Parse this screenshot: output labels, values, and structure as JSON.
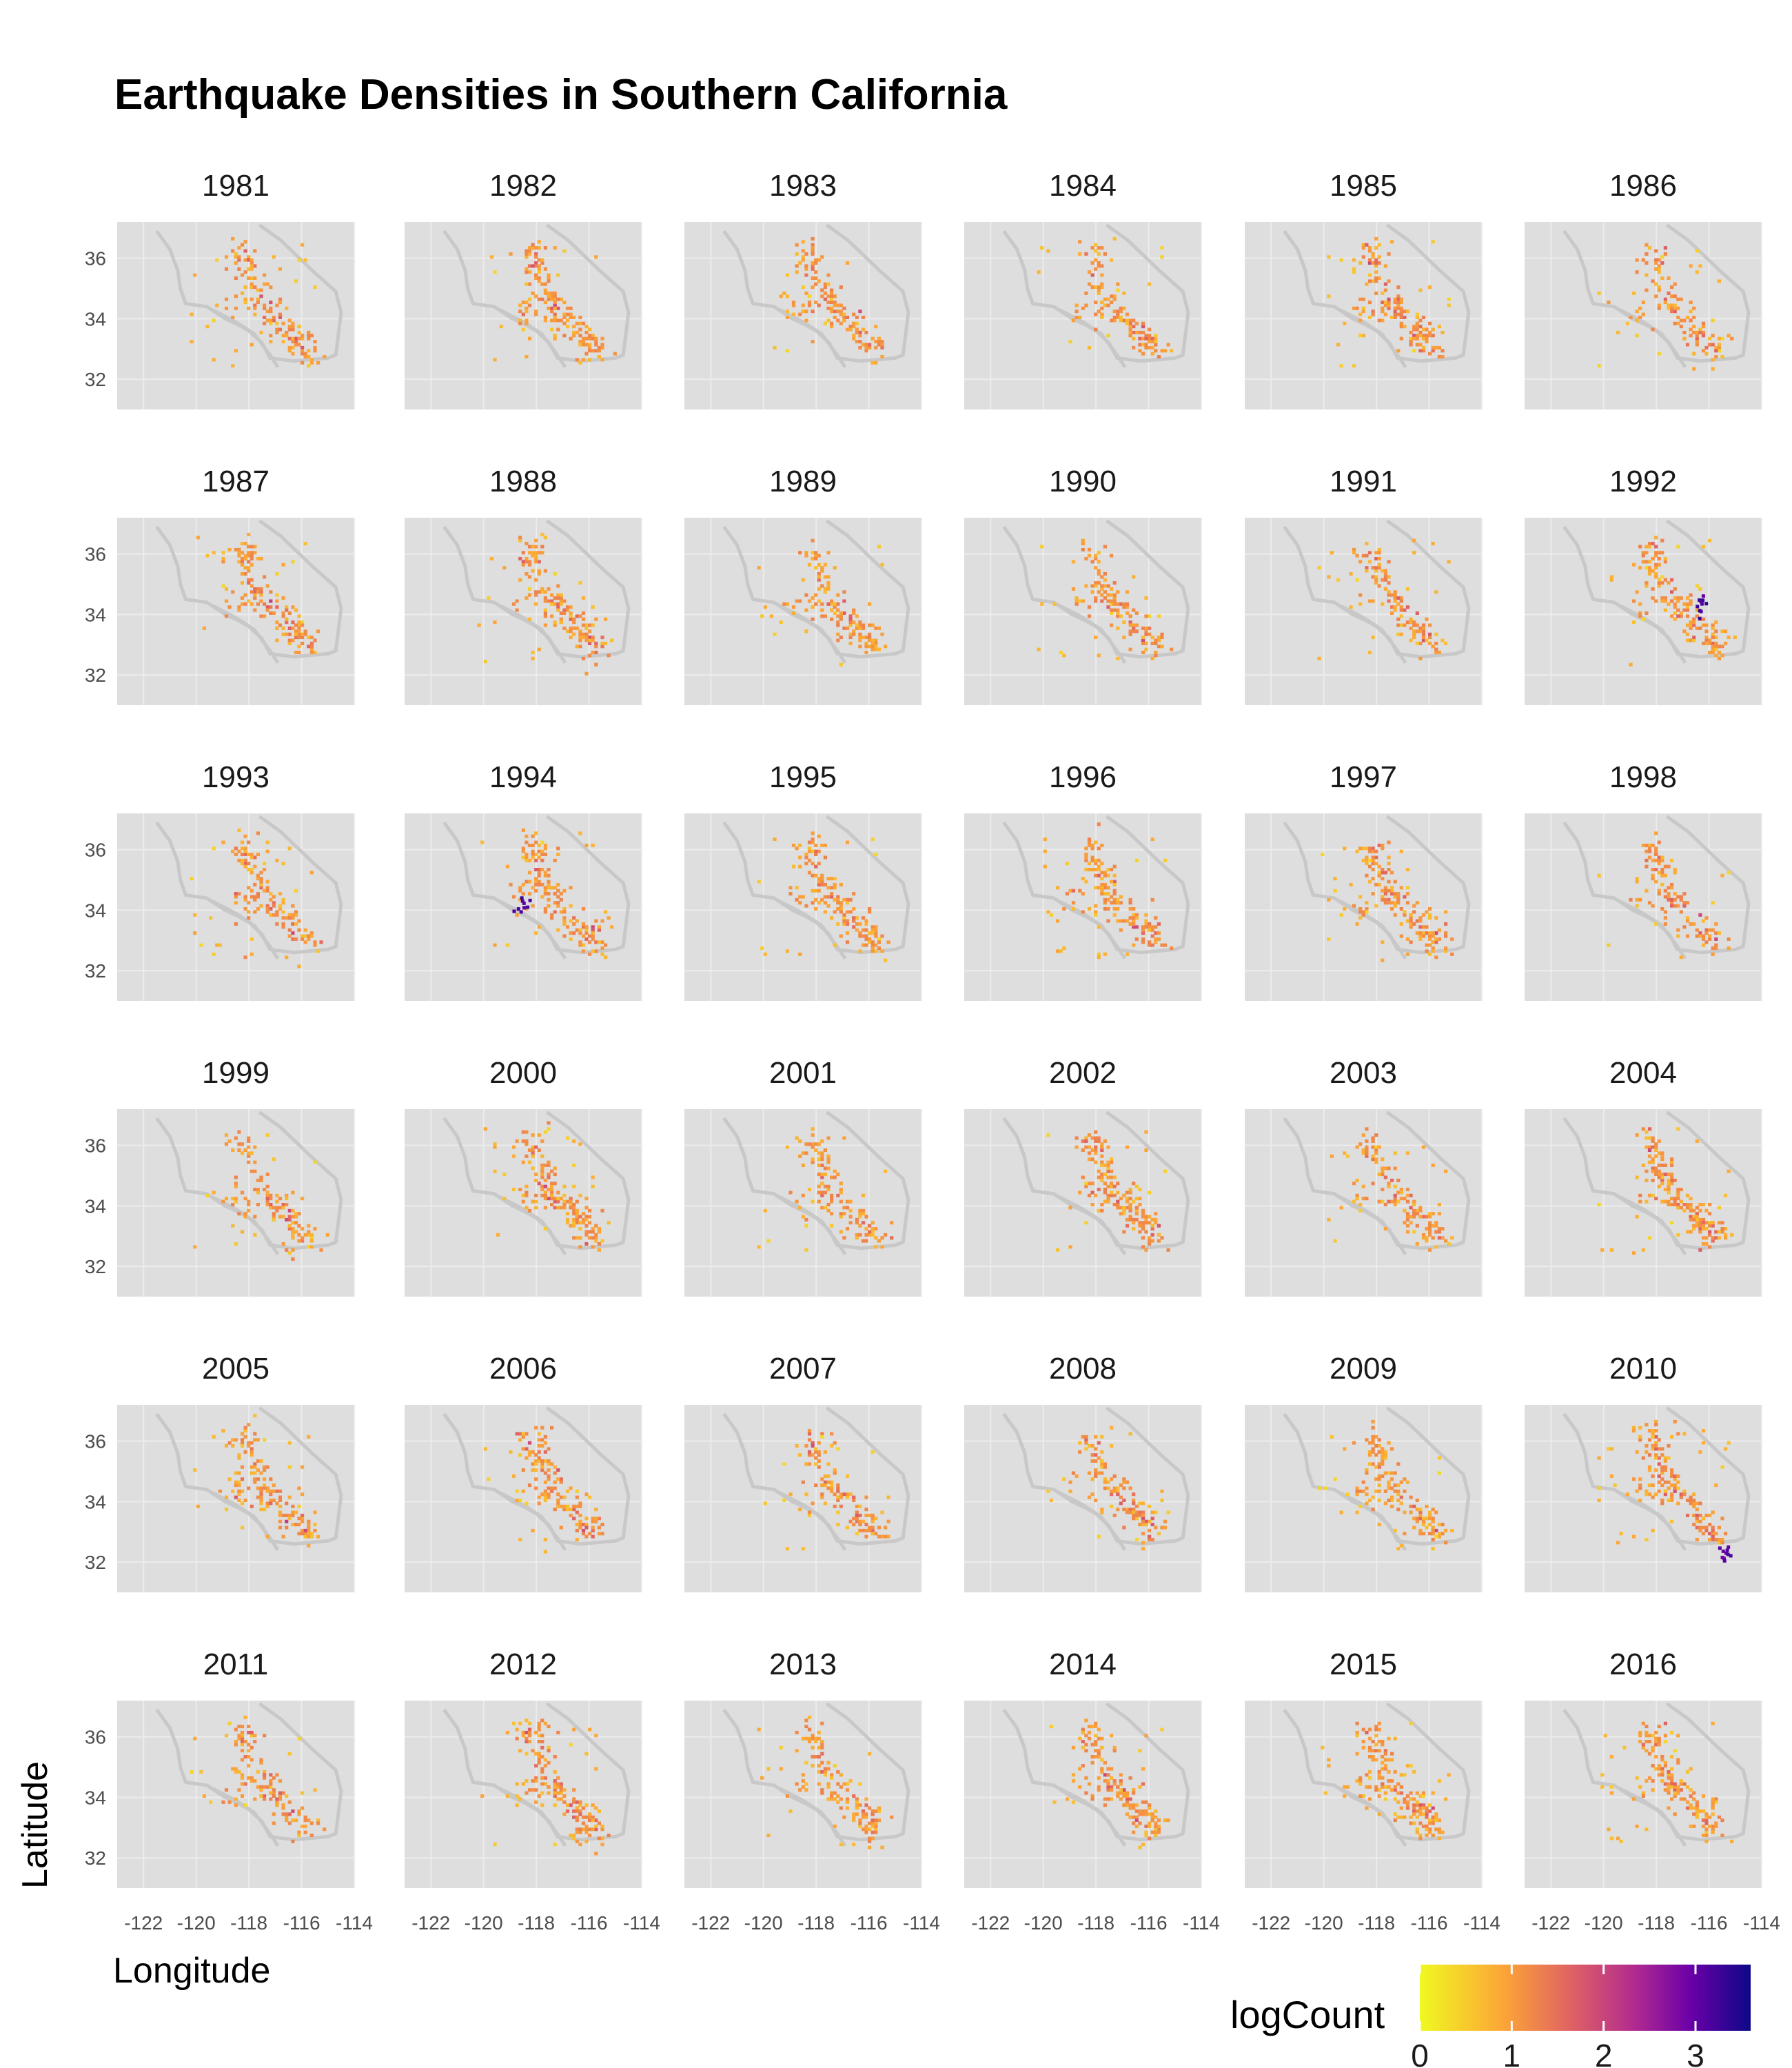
{
  "chart_data": {
    "type": "heatmap",
    "title": "Earthquake Densities in Southern California",
    "xlabel": "Longitude",
    "ylabel": "Latitude",
    "xlim": [
      -123,
      -114
    ],
    "ylim": [
      31,
      37.2
    ],
    "x_ticks": [
      -122,
      -120,
      -118,
      -116,
      -114
    ],
    "y_ticks": [
      32,
      34,
      36
    ],
    "x_tick_labels": [
      "-122",
      "-120",
      "-118",
      "-116",
      "-114"
    ],
    "y_tick_labels": [
      "32",
      "34",
      "36"
    ],
    "panels": [
      "1981",
      "1982",
      "1983",
      "1984",
      "1985",
      "1986",
      "1987",
      "1988",
      "1989",
      "1990",
      "1991",
      "1992",
      "1993",
      "1994",
      "1995",
      "1996",
      "1997",
      "1998",
      "1999",
      "2000",
      "2001",
      "2002",
      "2003",
      "2004",
      "2005",
      "2006",
      "2007",
      "2008",
      "2009",
      "2010",
      "2011",
      "2012",
      "2013",
      "2014",
      "2015",
      "2016"
    ],
    "facet_layout": {
      "columns": 6,
      "rows": 6
    },
    "grid": true,
    "colorbar": {
      "name": "logCount",
      "range": [
        0,
        3.6
      ],
      "ticks": [
        0,
        1,
        2,
        3
      ],
      "tick_labels": [
        "0",
        "1",
        "2",
        "3"
      ],
      "palette": [
        "#f0f921",
        "#fca636",
        "#e16462",
        "#b12a90",
        "#6a00a8",
        "#0d0887"
      ],
      "placement": "bottom-right"
    },
    "colors": {
      "panel_background": "#dedede",
      "state_border": "#c8c8c8"
    },
    "density_profile": {
      "hotspots_lon_lat": [
        [
          -118.2,
          36.0
        ],
        [
          -117.5,
          34.2
        ],
        [
          -116.5,
          33.5
        ],
        [
          -116.0,
          33.0
        ],
        [
          -118.5,
          34.3
        ]
      ],
      "notable": {
        "1992": {
          "lon": -116.4,
          "lat": 34.3,
          "logCount": 3.4
        },
        "1994": {
          "lon": -118.5,
          "lat": 34.2,
          "logCount": 3.4
        },
        "2010": {
          "lon": -115.4,
          "lat": 32.3,
          "logCount": 3.2
        }
      }
    }
  }
}
